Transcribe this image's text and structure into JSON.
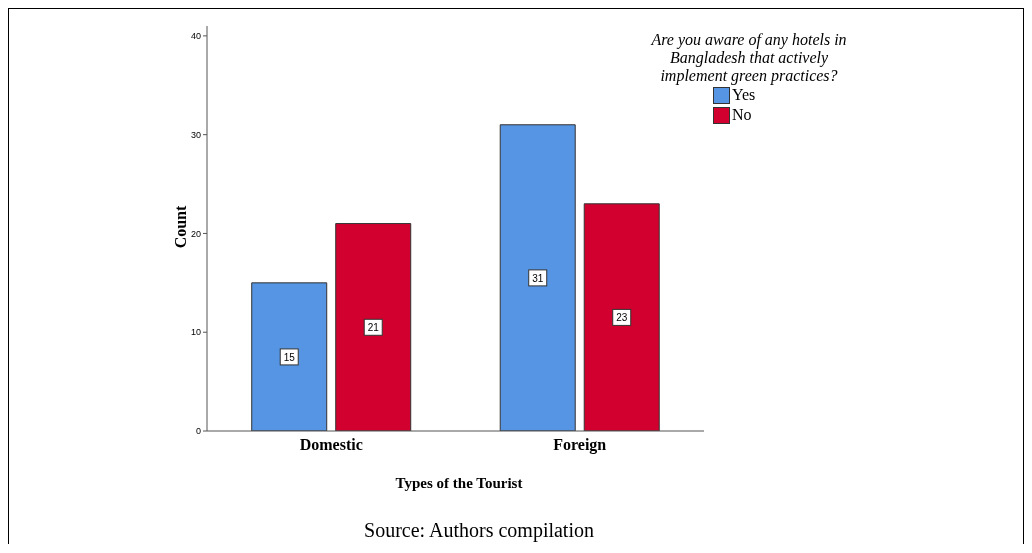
{
  "chart_data": {
    "type": "bar",
    "xlabel": "Types of the Tourist",
    "ylabel": "Count",
    "legend_title": "Are you aware of any hotels in Bangladesh that actively implement green practices?",
    "categories": [
      "Domestic",
      "Foreign"
    ],
    "series": [
      {
        "name": "Yes",
        "color": "#5595e3",
        "values": [
          15,
          31
        ]
      },
      {
        "name": "No",
        "color": "#d2002e",
        "values": [
          21,
          23
        ]
      }
    ],
    "ylim": [
      0,
      41
    ],
    "yticks": [
      0,
      10,
      20,
      30,
      40
    ],
    "data_labels": true,
    "legend": "top right",
    "annotations": [
      "Source: Authors compilation"
    ]
  }
}
